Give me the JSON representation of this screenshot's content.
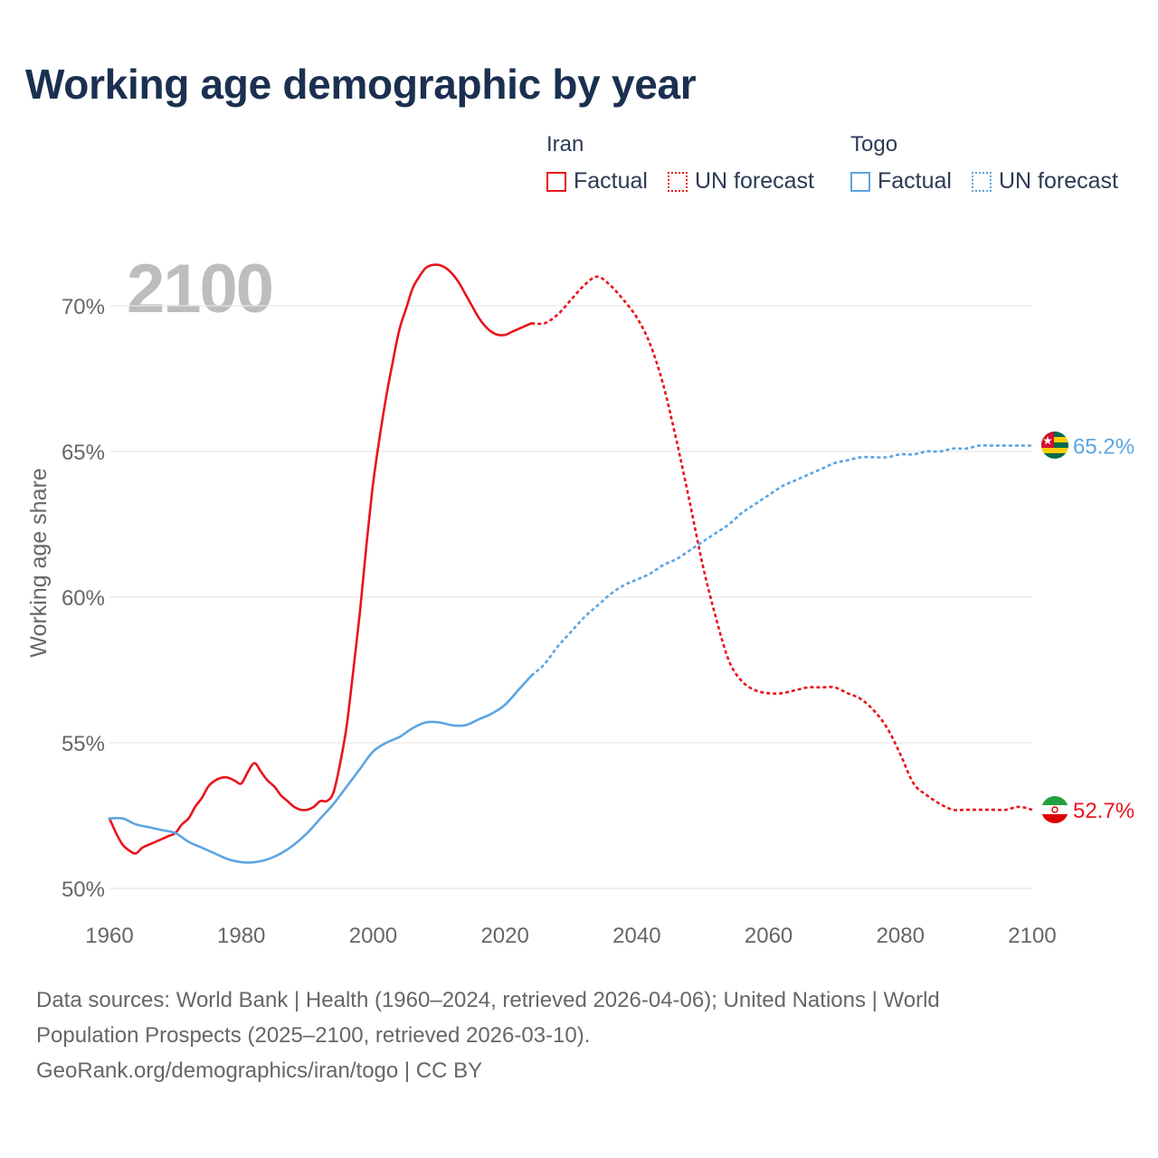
{
  "title": "Working age demographic by year",
  "year_label": "2100",
  "legend": {
    "groups": [
      {
        "name": "Iran",
        "color": "#e8141c",
        "factual_label": "Factual",
        "forecast_label": "UN forecast"
      },
      {
        "name": "Togo",
        "color": "#5ba5e3",
        "factual_label": "Factual",
        "forecast_label": "UN forecast"
      }
    ]
  },
  "footer": {
    "line1": "Data sources: World Bank | Health (1960–2024, retrieved 2026-04-06); United Nations | World",
    "line2": "Population Prospects (2025–2100, retrieved 2026-03-10).",
    "line3": "GeoRank.org/demographics/iran/togo | CC BY"
  },
  "chart_data": {
    "type": "line",
    "title": "Working age demographic by year",
    "xlabel": "",
    "ylabel": "Working age share",
    "xlim": [
      1960,
      2100
    ],
    "ylim": [
      49.5,
      72
    ],
    "x_ticks": [
      1960,
      1980,
      2000,
      2020,
      2040,
      2060,
      2080,
      2100
    ],
    "x_tick_labels": [
      "1960",
      "1980",
      "2000",
      "2020",
      "2040",
      "2060",
      "2080",
      "2100"
    ],
    "y_ticks": [
      50,
      55,
      60,
      65,
      70
    ],
    "y_tick_labels": [
      "50%",
      "55%",
      "60%",
      "65%",
      "70%"
    ],
    "grid": true,
    "series": [
      {
        "name": "Iran",
        "segment": "Factual",
        "color": "#e8141c",
        "dash": false,
        "x": [
          1960,
          1961,
          1962,
          1963,
          1964,
          1965,
          1966,
          1967,
          1968,
          1969,
          1970,
          1971,
          1972,
          1973,
          1974,
          1975,
          1976,
          1977,
          1978,
          1979,
          1980,
          1981,
          1982,
          1983,
          1984,
          1985,
          1986,
          1987,
          1988,
          1989,
          1990,
          1991,
          1992,
          1993,
          1994,
          1995,
          1996,
          1997,
          1998,
          1999,
          2000,
          2001,
          2002,
          2003,
          2004,
          2005,
          2006,
          2007,
          2008,
          2009,
          2010,
          2011,
          2012,
          2013,
          2014,
          2015,
          2016,
          2017,
          2018,
          2019,
          2020,
          2021,
          2022,
          2023,
          2024
        ],
        "values": [
          52.4,
          51.9,
          51.5,
          51.3,
          51.2,
          51.4,
          51.5,
          51.6,
          51.7,
          51.8,
          51.9,
          52.2,
          52.4,
          52.8,
          53.1,
          53.5,
          53.7,
          53.8,
          53.8,
          53.7,
          53.6,
          54.0,
          54.3,
          54.0,
          53.7,
          53.5,
          53.2,
          53.0,
          52.8,
          52.7,
          52.7,
          52.8,
          53.0,
          53.0,
          53.3,
          54.3,
          55.6,
          57.5,
          59.5,
          61.8,
          63.9,
          65.5,
          66.9,
          68.1,
          69.2,
          69.9,
          70.6,
          71.0,
          71.3,
          71.4,
          71.4,
          71.3,
          71.1,
          70.8,
          70.4,
          70.0,
          69.6,
          69.3,
          69.1,
          69.0,
          69.0,
          69.1,
          69.2,
          69.3,
          69.4
        ]
      },
      {
        "name": "Iran",
        "segment": "UN forecast",
        "color": "#e8141c",
        "dash": true,
        "x": [
          2024,
          2026,
          2028,
          2030,
          2032,
          2034,
          2036,
          2038,
          2040,
          2042,
          2044,
          2046,
          2048,
          2050,
          2052,
          2054,
          2056,
          2058,
          2060,
          2062,
          2064,
          2066,
          2068,
          2070,
          2072,
          2074,
          2076,
          2078,
          2080,
          2082,
          2084,
          2086,
          2088,
          2090,
          2092,
          2094,
          2096,
          2098,
          2100
        ],
        "values": [
          69.4,
          69.4,
          69.7,
          70.2,
          70.7,
          71.0,
          70.7,
          70.2,
          69.6,
          68.7,
          67.3,
          65.4,
          63.3,
          61.1,
          59.3,
          57.8,
          57.1,
          56.8,
          56.7,
          56.7,
          56.8,
          56.9,
          56.9,
          56.9,
          56.7,
          56.5,
          56.1,
          55.5,
          54.6,
          53.6,
          53.2,
          52.9,
          52.7,
          52.7,
          52.7,
          52.7,
          52.7,
          52.8,
          52.7
        ]
      },
      {
        "name": "Togo",
        "segment": "Factual",
        "color": "#5ba5e3",
        "dash": false,
        "x": [
          1960,
          1962,
          1964,
          1966,
          1968,
          1970,
          1972,
          1974,
          1976,
          1978,
          1980,
          1982,
          1984,
          1986,
          1988,
          1990,
          1992,
          1994,
          1996,
          1998,
          2000,
          2002,
          2004,
          2006,
          2008,
          2010,
          2012,
          2014,
          2016,
          2018,
          2020,
          2022,
          2024
        ],
        "values": [
          52.4,
          52.4,
          52.2,
          52.1,
          52.0,
          51.9,
          51.6,
          51.4,
          51.2,
          51.0,
          50.9,
          50.9,
          51.0,
          51.2,
          51.5,
          51.9,
          52.4,
          52.9,
          53.5,
          54.1,
          54.7,
          55.0,
          55.2,
          55.5,
          55.7,
          55.7,
          55.6,
          55.6,
          55.8,
          56.0,
          56.3,
          56.8,
          57.3
        ]
      },
      {
        "name": "Togo",
        "segment": "UN forecast",
        "color": "#5ba5e3",
        "dash": true,
        "x": [
          2024,
          2026,
          2028,
          2030,
          2032,
          2034,
          2036,
          2038,
          2040,
          2042,
          2044,
          2046,
          2048,
          2050,
          2052,
          2054,
          2056,
          2058,
          2060,
          2062,
          2064,
          2066,
          2068,
          2070,
          2072,
          2074,
          2076,
          2078,
          2080,
          2082,
          2084,
          2086,
          2088,
          2090,
          2092,
          2094,
          2096,
          2098,
          2100
        ],
        "values": [
          57.3,
          57.7,
          58.3,
          58.8,
          59.3,
          59.7,
          60.1,
          60.4,
          60.6,
          60.8,
          61.1,
          61.3,
          61.6,
          61.9,
          62.2,
          62.5,
          62.9,
          63.2,
          63.5,
          63.8,
          64.0,
          64.2,
          64.4,
          64.6,
          64.7,
          64.8,
          64.8,
          64.8,
          64.9,
          64.9,
          65.0,
          65.0,
          65.1,
          65.1,
          65.2,
          65.2,
          65.2,
          65.2,
          65.2
        ]
      }
    ],
    "end_labels": [
      {
        "name": "Togo",
        "value": 65.2,
        "text": "65.2%",
        "color": "#5ba5e3",
        "flag": "togo-flag"
      },
      {
        "name": "Iran",
        "value": 52.7,
        "text": "52.7%",
        "color": "#e8141c",
        "flag": "iran-flag"
      }
    ]
  }
}
